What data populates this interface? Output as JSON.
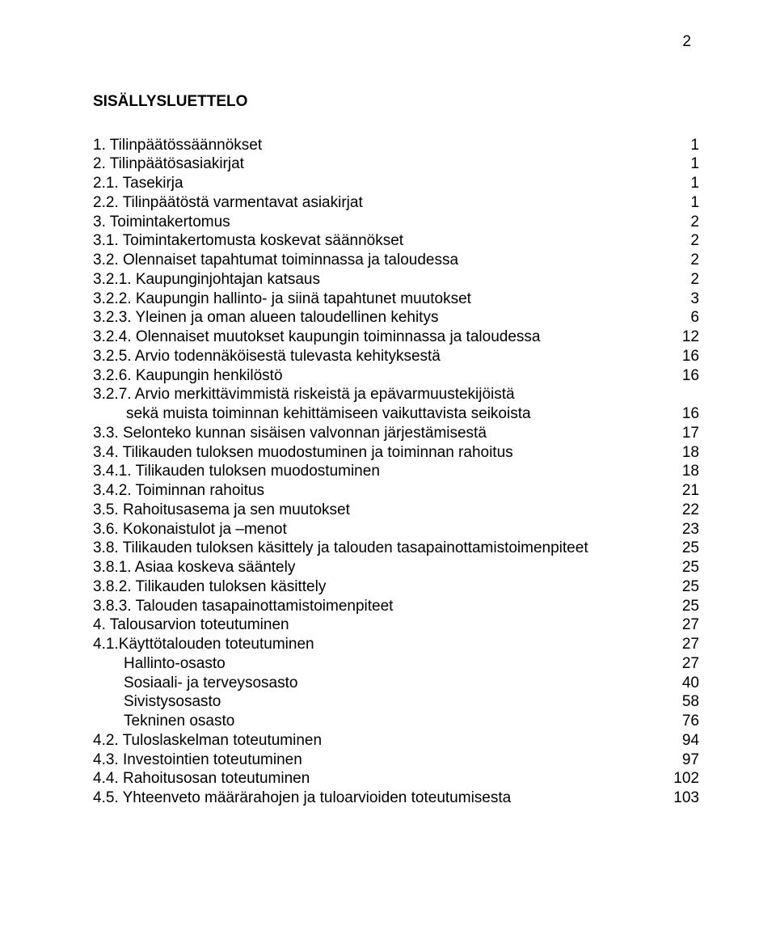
{
  "page_number": "2",
  "heading": "SISÄLLYSLUETTELO",
  "toc": [
    {
      "label": "1. Tilinpäätössäännökset",
      "page": "1"
    },
    {
      "label": "2. Tilinpäätösasiakirjat",
      "page": "1"
    },
    {
      "label": "2.1. Tasekirja",
      "page": "1"
    },
    {
      "label": "2.2. Tilinpäätöstä varmentavat asiakirjat",
      "page": "1"
    },
    {
      "label": "3. Toimintakertomus",
      "page": "2"
    },
    {
      "label": "3.1. Toimintakertomusta koskevat säännökset",
      "page": "2"
    },
    {
      "label": "3.2. Olennaiset tapahtumat toiminnassa ja taloudessa",
      "page": "2"
    },
    {
      "label": "3.2.1. Kaupunginjohtajan katsaus",
      "page": "2"
    },
    {
      "label": "3.2.2. Kaupungin hallinto- ja siinä tapahtunet muutokset",
      "page": "3"
    },
    {
      "label": "3.2.3. Yleinen ja oman alueen taloudellinen kehitys",
      "page": "6"
    },
    {
      "label": "3.2.4. Olennaiset muutokset kaupungin toiminnassa ja taloudessa",
      "page": "12"
    },
    {
      "label": "3.2.5. Arvio todennäköisestä tulevasta kehityksestä",
      "page": "16"
    },
    {
      "label": "3.2.6. Kaupungin henkilöstö",
      "page": "16"
    },
    {
      "label": "3.2.7. Arvio merkittävimmistä riskeistä ja epävarmuustekijöistä",
      "page": ""
    },
    {
      "label": "sekä muista toiminnan kehittämiseen vaikuttavista seikoista",
      "page": "16",
      "indent": "cont"
    },
    {
      "label": "3.3. Selonteko kunnan sisäisen valvonnan järjestämisestä",
      "page": "17"
    },
    {
      "label": "3.4. Tilikauden tuloksen muodostuminen ja toiminnan rahoitus",
      "page": "18"
    },
    {
      "label": "3.4.1. Tilikauden tuloksen muodostuminen",
      "page": "18"
    },
    {
      "label": "3.4.2. Toiminnan rahoitus",
      "page": "21"
    },
    {
      "label": "3.5. Rahoitusasema ja sen muutokset",
      "page": "22"
    },
    {
      "label": "3.6. Kokonaistulot ja –menot",
      "page": "23"
    },
    {
      "label": "3.8. Tilikauden tuloksen käsittely ja talouden tasapainottamistoimenpiteet",
      "page": "25"
    },
    {
      "label": "3.8.1. Asiaa koskeva sääntely",
      "page": "25"
    },
    {
      "label": "3.8.2. Tilikauden tuloksen käsittely",
      "page": "25"
    },
    {
      "label": "3.8.3. Talouden tasapainottamistoimenpiteet",
      "page": "25"
    },
    {
      "label": "4. Talousarvion toteutuminen",
      "page": "27"
    },
    {
      "label": "4.1.Käyttötalouden toteutuminen",
      "page": "27"
    },
    {
      "label": "Hallinto-osasto",
      "page": "27",
      "indent": "sub"
    },
    {
      "label": "Sosiaali- ja terveysosasto",
      "page": "40",
      "indent": "sub"
    },
    {
      "label": "Sivistysosasto",
      "page": "58",
      "indent": "sub"
    },
    {
      "label": "Tekninen osasto",
      "page": "76",
      "indent": "sub"
    },
    {
      "label": "4.2. Tuloslaskelman toteutuminen",
      "page": "94"
    },
    {
      "label": "4.3. Investointien toteutuminen",
      "page": "97"
    },
    {
      "label": "4.4. Rahoitusosan toteutuminen",
      "page": "102"
    },
    {
      "label": "4.5. Yhteenveto määrärahojen ja tuloarvioiden toteutumisesta",
      "page": "103"
    }
  ]
}
